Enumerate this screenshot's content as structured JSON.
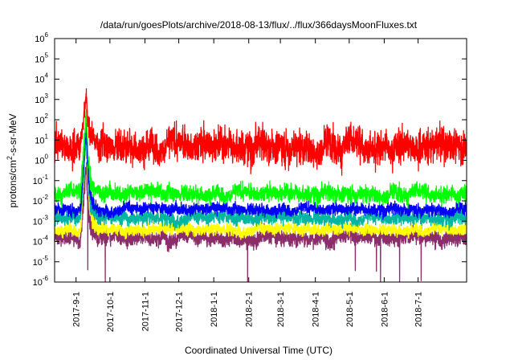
{
  "chart_data": {
    "type": "line",
    "title": "/data/run/goesPlots/archive/2018-08-13/flux/../flux/366daysMoonFluxes.txt",
    "xlabel": "Coordinated Universal Time (UTC)",
    "ylabel": "protons/cm2-s-sr-MeV",
    "ylabel_base": "protons/cm",
    "ylabel_sup": "2",
    "ylabel_rest": "-s-sr-MeV",
    "y_scale": "log",
    "ylim": [
      1e-06,
      1000000.0
    ],
    "xlim": [
      "2017-08-13",
      "2018-08-13"
    ],
    "y_ticks": [
      {
        "value": 1e-06,
        "base": "10",
        "exp": "-6"
      },
      {
        "value": 1e-05,
        "base": "10",
        "exp": "-5"
      },
      {
        "value": 0.0001,
        "base": "10",
        "exp": "-4"
      },
      {
        "value": 0.001,
        "base": "10",
        "exp": "-3"
      },
      {
        "value": 0.01,
        "base": "10",
        "exp": "-2"
      },
      {
        "value": 0.1,
        "base": "10",
        "exp": "-1"
      },
      {
        "value": 1,
        "base": "10",
        "exp": "0"
      },
      {
        "value": 10,
        "base": "10",
        "exp": "1"
      },
      {
        "value": 100,
        "base": "10",
        "exp": "2"
      },
      {
        "value": 1000,
        "base": "10",
        "exp": "3"
      },
      {
        "value": 10000,
        "base": "10",
        "exp": "4"
      },
      {
        "value": 100000,
        "base": "10",
        "exp": "5"
      },
      {
        "value": 1000000,
        "base": "10",
        "exp": "6"
      }
    ],
    "x_ticks": [
      {
        "date": "2017-09-01",
        "label": "2017-9-1"
      },
      {
        "date": "2017-10-01",
        "label": "2017-10-1"
      },
      {
        "date": "2017-11-01",
        "label": "2017-11-1"
      },
      {
        "date": "2017-12-01",
        "label": "2017-12-1"
      },
      {
        "date": "2018-01-01",
        "label": "2018-1-1"
      },
      {
        "date": "2018-02-01",
        "label": "2018-2-1"
      },
      {
        "date": "2018-03-01",
        "label": "2018-3-1"
      },
      {
        "date": "2018-04-01",
        "label": "2018-4-1"
      },
      {
        "date": "2018-05-01",
        "label": "2018-5-1"
      },
      {
        "date": "2018-06-01",
        "label": "2018-6-1"
      },
      {
        "date": "2018-07-01",
        "label": "2018-7-1"
      }
    ],
    "grid": false,
    "legend": "none",
    "event": {
      "start": "2017-09-05",
      "peak": "2017-09-10",
      "end": "2017-09-20"
    },
    "series": [
      {
        "color": "#8b2d6b",
        "baseline": 0.00015,
        "noise_decades": 0.35,
        "event_peak": 0.5
      },
      {
        "color": "#ffff00",
        "baseline": 0.0004,
        "noise_decades": 0.25,
        "event_peak": 15
      },
      {
        "color": "#00b6a0",
        "baseline": 0.0015,
        "noise_decades": 0.3,
        "event_peak": 25
      },
      {
        "color": "#0000ff",
        "baseline": 0.004,
        "noise_decades": 0.25,
        "event_peak": 60
      },
      {
        "color": "#00ff00",
        "baseline": 0.025,
        "noise_decades": 0.35,
        "event_peak": 200
      },
      {
        "color": "#ff0000",
        "baseline": 6,
        "noise_decades": 0.7,
        "event_peak": 1500
      }
    ]
  }
}
